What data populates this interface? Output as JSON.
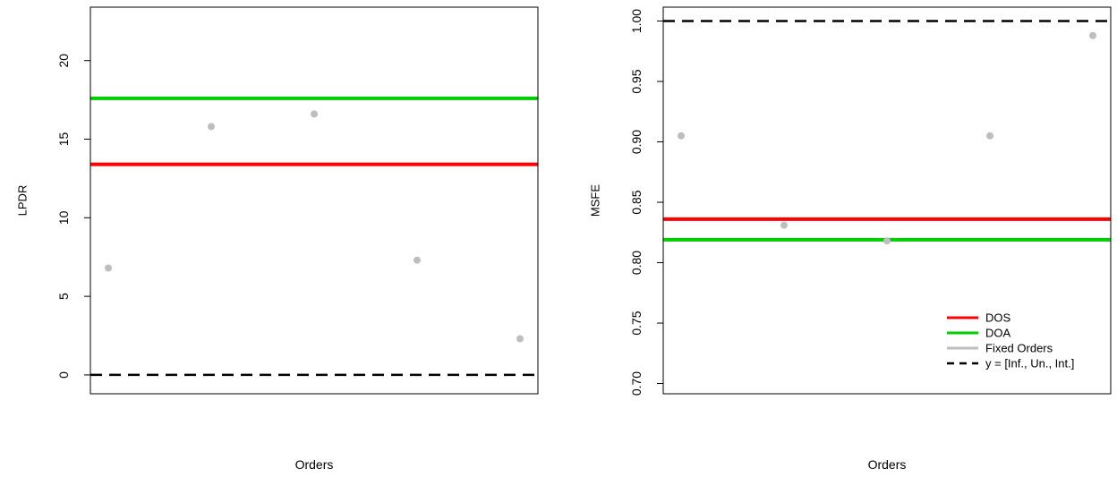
{
  "chart_data": [
    {
      "type": "scatter",
      "xlabel": "Orders",
      "ylabel": "LPDR",
      "ylim": [
        -1.2,
        23.4
      ],
      "yticks": [
        0,
        5,
        10,
        15,
        20
      ],
      "grid": false,
      "x": [
        1,
        2,
        3,
        4,
        5
      ],
      "points": [
        6.8,
        15.8,
        16.6,
        7.3,
        2.3
      ],
      "hlines": [
        {
          "name": "DOS",
          "y": 13.4,
          "color": "#ff0000",
          "dash": false
        },
        {
          "name": "DOA",
          "y": 17.6,
          "color": "#00cd00",
          "dash": false
        },
        {
          "name": "y = [Inf., Un., Int.]",
          "y": 0,
          "color": "#000000",
          "dash": true
        }
      ],
      "point_color": "#bebebe"
    },
    {
      "type": "scatter",
      "xlabel": "Orders",
      "ylabel": "MSFE",
      "ylim": [
        0.6915,
        1.0115
      ],
      "yticks": [
        "0.70",
        "0.75",
        "0.80",
        "0.85",
        "0.90",
        "0.95",
        "1.00"
      ],
      "grid": false,
      "x": [
        1,
        2,
        3,
        4,
        5
      ],
      "points": [
        0.905,
        0.831,
        0.818,
        0.905,
        0.988
      ],
      "hlines": [
        {
          "name": "DOS",
          "y": 0.836,
          "color": "#ff0000",
          "dash": false
        },
        {
          "name": "DOA",
          "y": 0.819,
          "color": "#00cd00",
          "dash": false
        },
        {
          "name": "y = [Inf., Un., Int.]",
          "y": 1.0,
          "color": "#000000",
          "dash": true
        }
      ],
      "point_color": "#bebebe",
      "legend": {
        "position": "bottom-right",
        "entries": [
          {
            "label": "DOS",
            "color": "#ff0000",
            "dash": false
          },
          {
            "label": "DOA",
            "color": "#00cd00",
            "dash": false
          },
          {
            "label": "Fixed Orders",
            "color": "#bebebe",
            "dash": false
          },
          {
            "label": "y = [Inf., Un., Int.]",
            "color": "#000000",
            "dash": true
          }
        ]
      }
    }
  ]
}
